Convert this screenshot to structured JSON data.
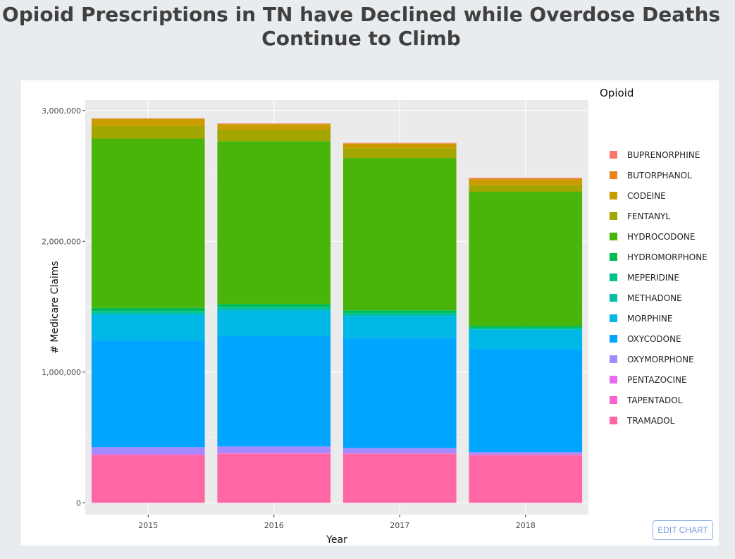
{
  "title": "Opioid Prescriptions in TN have Declined while Overdose Deaths Continue to Climb",
  "edit_chart_label": "EDIT CHART",
  "chart_data": {
    "type": "bar",
    "stacked": true,
    "categories": [
      "2015",
      "2016",
      "2017",
      "2018"
    ],
    "xlabel": "Year",
    "ylabel": "# Medicare Claims",
    "ylim": [
      -90000,
      3080000
    ],
    "yticks": [
      0,
      1000000,
      2000000,
      3000000
    ],
    "ytick_labels": [
      "0",
      "1,000,000",
      "2,000,000",
      "3,000,000"
    ],
    "legend_title": "Opioid",
    "legend_position": "right",
    "grid": true,
    "plot_background": "#ebebeb",
    "series": [
      {
        "name": "TRAMADOL",
        "color": "#ff67a4",
        "values": [
          365000,
          375000,
          375000,
          365000
        ]
      },
      {
        "name": "TAPENTADOL",
        "color": "#fd61d1",
        "values": [
          3000,
          3000,
          2000,
          2000
        ]
      },
      {
        "name": "PENTAZOCINE",
        "color": "#e76bf3",
        "values": [
          3000,
          3000,
          2000,
          2000
        ]
      },
      {
        "name": "OXYMORPHONE",
        "color": "#a58aff",
        "values": [
          55000,
          50000,
          40000,
          20000
        ]
      },
      {
        "name": "OXYCODONE",
        "color": "#00a5ff",
        "values": [
          815000,
          845000,
          840000,
          785000
        ]
      },
      {
        "name": "MORPHINE",
        "color": "#00b8e7",
        "values": [
          200000,
          195000,
          170000,
          150000
        ]
      },
      {
        "name": "METHADONE",
        "color": "#00c1a3",
        "values": [
          20000,
          20000,
          18000,
          12000
        ]
      },
      {
        "name": "MEPERIDINE",
        "color": "#00c08b",
        "values": [
          5000,
          5000,
          5000,
          3000
        ]
      },
      {
        "name": "HYDROMORPHONE",
        "color": "#00bc56",
        "values": [
          25000,
          25000,
          20000,
          15000
        ]
      },
      {
        "name": "HYDROCODONE",
        "color": "#49b50a",
        "values": [
          1295000,
          1245000,
          1165000,
          1025000
        ]
      },
      {
        "name": "FENTANYL",
        "color": "#a3a500",
        "values": [
          95000,
          85000,
          75000,
          50000
        ]
      },
      {
        "name": "CODEINE",
        "color": "#ca9c00",
        "values": [
          55000,
          45000,
          35000,
          45000
        ]
      },
      {
        "name": "BUTORPHANOL",
        "color": "#e68613",
        "values": [
          3000,
          3000,
          3000,
          5000
        ]
      },
      {
        "name": "BUPRENORPHINE",
        "color": "#f8766d",
        "values": [
          2000,
          2000,
          3000,
          6000
        ]
      }
    ]
  }
}
